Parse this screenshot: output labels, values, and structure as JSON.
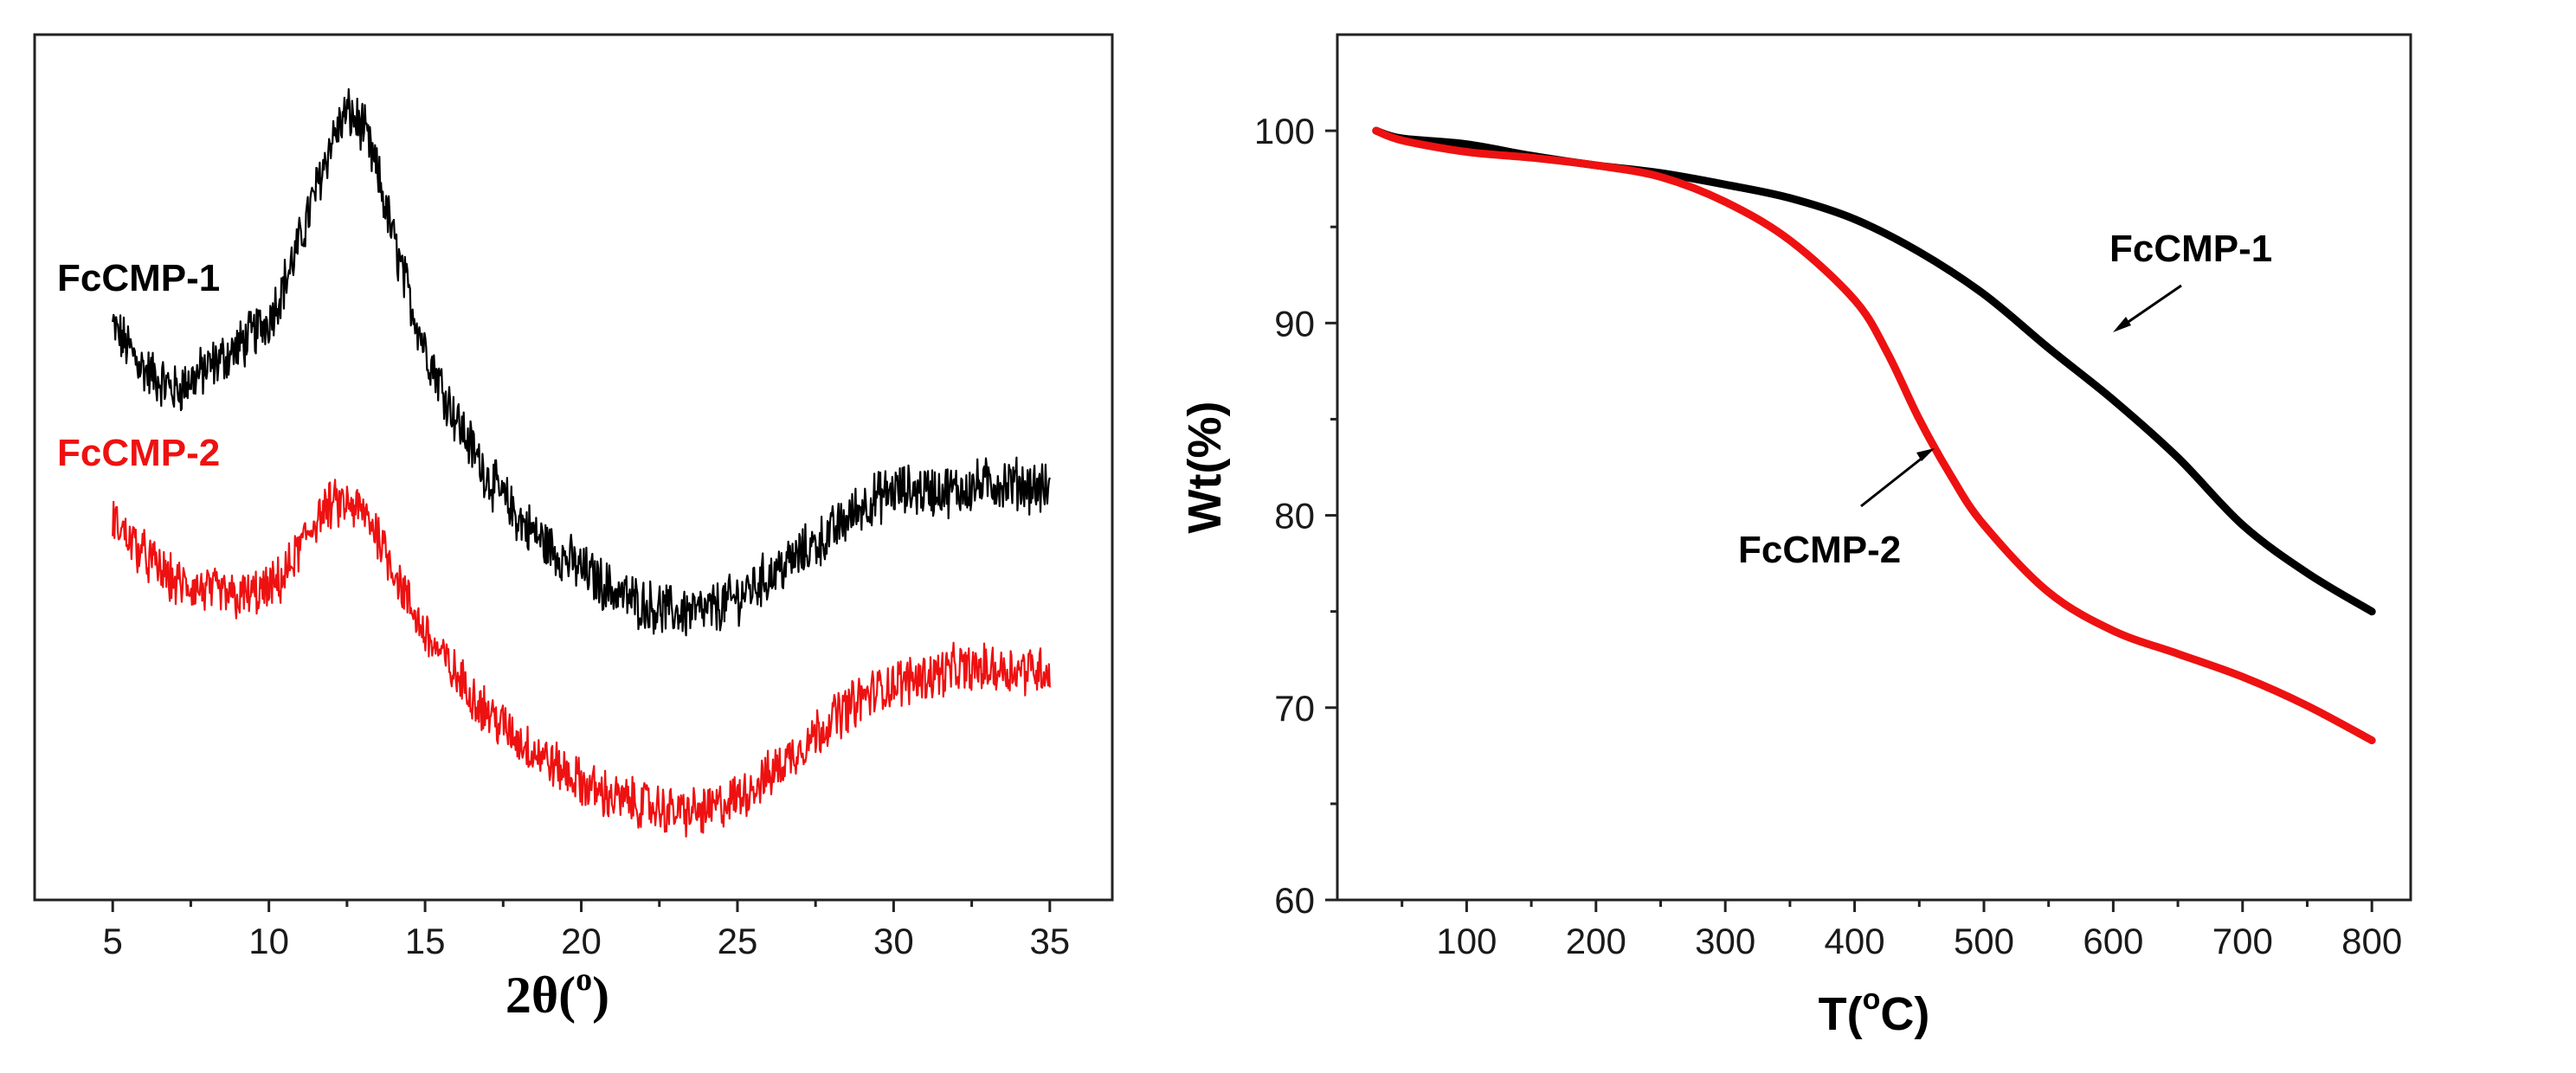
{
  "chart_data": [
    {
      "type": "line",
      "title": "",
      "xlabel": "2θ(°)",
      "xlabel_base": "2θ(",
      "xlabel_sup": "o",
      "xlabel_close": ")",
      "ylabel": "",
      "xlim": [
        2.5,
        37
      ],
      "ylim": [
        0,
        100
      ],
      "y_ticks_shown": false,
      "x_ticks": [
        5,
        10,
        15,
        20,
        25,
        30,
        35
      ],
      "grid": false,
      "series": [
        {
          "name": "FcCMP-1",
          "label": "FcCMP-1",
          "color": "#000000",
          "noise": 3.2,
          "x": [
            5,
            6,
            7,
            8,
            9,
            10,
            10.5,
            11,
            11.5,
            12,
            12.5,
            13,
            13.5,
            14,
            14.5,
            15,
            16,
            17,
            18,
            19,
            20,
            21,
            22,
            23,
            24,
            25,
            26,
            27,
            28,
            29,
            30,
            31,
            32,
            33,
            34,
            35
          ],
          "y": [
            67,
            61,
            58,
            61,
            64,
            68,
            73,
            79,
            86,
            93,
            97,
            95,
            88,
            79,
            71,
            64,
            54,
            46,
            40,
            36,
            33,
            30,
            28,
            27,
            27,
            29,
            32,
            35,
            38,
            42,
            44,
            44,
            44,
            45,
            45,
            44
          ]
        },
        {
          "name": "FcCMP-2",
          "label": "FcCMP-2",
          "color": "#ee1111",
          "noise": 3.0,
          "x": [
            5,
            6,
            7,
            8,
            9,
            10,
            10.5,
            11,
            11.5,
            12,
            12.5,
            13,
            13.5,
            14,
            14.5,
            15,
            16,
            17,
            18,
            19,
            20,
            21,
            22,
            23,
            24,
            25,
            26,
            27,
            28,
            29,
            30,
            31,
            32,
            33,
            34,
            35
          ],
          "y": [
            40,
            35,
            31,
            30,
            29,
            30,
            32,
            36,
            40,
            42,
            42,
            41,
            38,
            33,
            28,
            24,
            18,
            13,
            9,
            6,
            3,
            1,
            0,
            -1,
            -1,
            1,
            4,
            8,
            12,
            15,
            17,
            18,
            19,
            19,
            19,
            19
          ]
        }
      ]
    },
    {
      "type": "line",
      "title": "",
      "xlabel": "T(°C)",
      "xlabel_base": "T(",
      "xlabel_sup": "o",
      "xlabel_close": "C)",
      "ylabel": "Wt(%)",
      "xlim": [
        0,
        830
      ],
      "ylim": [
        60,
        105
      ],
      "x_ticks": [
        100,
        200,
        300,
        400,
        500,
        600,
        700,
        800
      ],
      "y_ticks": [
        60,
        70,
        80,
        90,
        100
      ],
      "grid": false,
      "series": [
        {
          "name": "FcCMP-1",
          "label": "FcCMP-1",
          "color": "#000000",
          "x": [
            30,
            50,
            100,
            150,
            200,
            250,
            300,
            350,
            400,
            450,
            500,
            550,
            600,
            650,
            700,
            750,
            800
          ],
          "y": [
            100,
            99.6,
            99.3,
            98.7,
            98.2,
            97.8,
            97.2,
            96.5,
            95.4,
            93.7,
            91.5,
            88.7,
            86,
            83,
            79.5,
            77,
            75
          ]
        },
        {
          "name": "FcCMP-2",
          "label": "FcCMP-2",
          "color": "#ee1111",
          "x": [
            30,
            50,
            100,
            150,
            200,
            250,
            300,
            350,
            400,
            425,
            450,
            475,
            500,
            550,
            600,
            650,
            700,
            750,
            800
          ],
          "y": [
            100,
            99.5,
            98.9,
            98.6,
            98.2,
            97.6,
            96.3,
            94.3,
            91.2,
            88.5,
            85,
            82,
            79.5,
            76,
            74,
            72.8,
            71.6,
            70.1,
            68.3
          ]
        }
      ]
    }
  ]
}
